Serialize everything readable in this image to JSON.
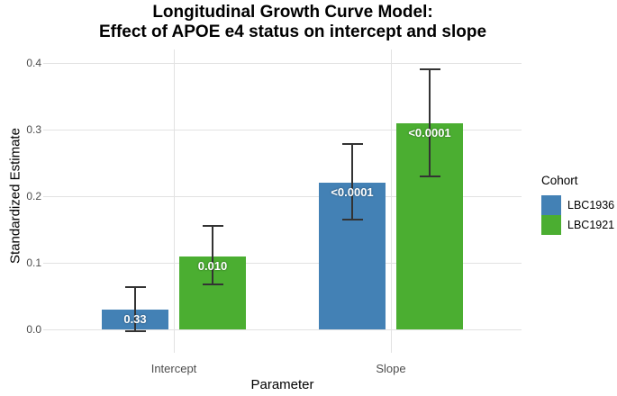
{
  "chart_data": {
    "type": "bar",
    "title": "Longitudinal Growth Curve Model: Effect of APOE e4 status on intercept and slope",
    "title_lines": [
      "Longitudinal Growth Curve Model:",
      "Effect of APOE e4 status on intercept and slope"
    ],
    "xlabel": "Parameter",
    "ylabel": "Standardized Estimate",
    "categories": [
      "Intercept",
      "Slope"
    ],
    "yticks": [
      "0.0",
      "0.1",
      "0.2",
      "0.3",
      "0.4"
    ],
    "ylim": [
      -0.035,
      0.42
    ],
    "grid": true,
    "legend": {
      "title": "Cohort",
      "position": "right"
    },
    "series": [
      {
        "name": "LBC1936",
        "color": "#4381b5",
        "values": [
          0.03,
          0.22
        ],
        "ci_low": [
          -0.003,
          0.165
        ],
        "ci_high": [
          0.063,
          0.278
        ],
        "p_labels": [
          "0.33",
          "<0.0001"
        ]
      },
      {
        "name": "LBC1921",
        "color": "#4bae31",
        "values": [
          0.11,
          0.31
        ],
        "ci_low": [
          0.068,
          0.23
        ],
        "ci_high": [
          0.155,
          0.39
        ],
        "p_labels": [
          "0.010",
          "<0.0001"
        ]
      }
    ],
    "colors": {
      "grid": "#e2e2e2",
      "error_bar": "#333333",
      "tick_label": "#4d4d4d",
      "value_label": "#ffffff"
    }
  }
}
